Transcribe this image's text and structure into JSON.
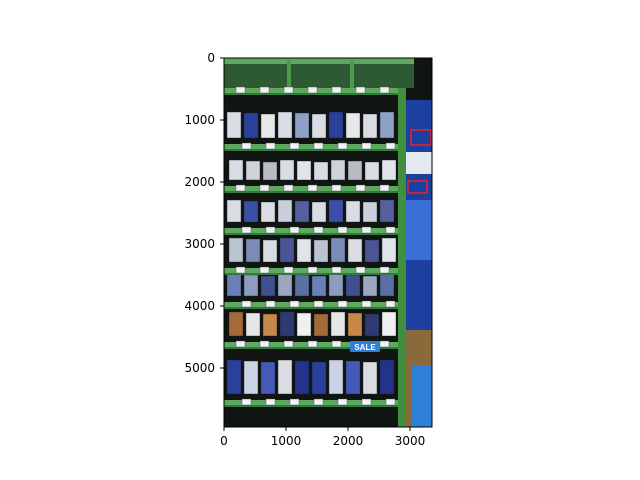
{
  "figure": {
    "title": "",
    "xlabel": "",
    "ylabel": ""
  },
  "image": {
    "subject": "retail shelf with packaged products, price tags and red bounding boxes",
    "colors": {
      "frame_dark": "#101512",
      "shelf_green": "#5fa85f",
      "shelf_edge": "#2f7d3a",
      "upright_green": "#3f8f3f",
      "package_white": "#d9dde3",
      "package_blue": "#2b3f9c",
      "sale_blue": "#2f7fd6",
      "box_red": "#e0262c"
    },
    "sale_label": "SALE",
    "annotated_box_count": 2
  },
  "axes": {
    "x_ticks": [
      "0",
      "1000",
      "2000",
      "3000"
    ],
    "y_ticks": [
      "0",
      "1000",
      "2000",
      "3000",
      "4000",
      "5000"
    ],
    "x_range": [
      0,
      3350
    ],
    "y_range": [
      5950,
      0
    ]
  }
}
